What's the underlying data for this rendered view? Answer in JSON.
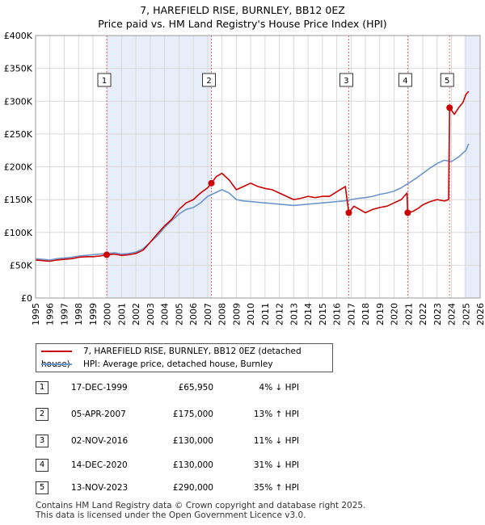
{
  "title": "7, HAREFIELD RISE, BURNLEY, BB12 0EZ",
  "subtitle": "Price paid vs. HM Land Registry's House Price Index (HPI)",
  "colors": {
    "property": "#cc0000",
    "hpi": "#6b96cc",
    "shade": "#e8eef9",
    "grid": "#d9d9d9",
    "vline": "#e06a6a"
  },
  "legend": {
    "property_label": "7, HAREFIELD RISE, BURNLEY, BB12 0EZ (detached house)",
    "hpi_label": "HPI: Average price, detached house, Burnley"
  },
  "sales": [
    {
      "num": "1",
      "date": "17-DEC-1999",
      "price": "£65,950",
      "hpi": "4% ↓ HPI"
    },
    {
      "num": "2",
      "date": "05-APR-2007",
      "price": "£175,000",
      "hpi": "13% ↑ HPI"
    },
    {
      "num": "3",
      "date": "02-NOV-2016",
      "price": "£130,000",
      "hpi": "11% ↓ HPI"
    },
    {
      "num": "4",
      "date": "14-DEC-2020",
      "price": "£130,000",
      "hpi": "31% ↓ HPI"
    },
    {
      "num": "5",
      "date": "13-NOV-2023",
      "price": "£290,000",
      "hpi": "35% ↑ HPI"
    }
  ],
  "footer": {
    "line1": "Contains HM Land Registry data © Crown copyright and database right 2025.",
    "line2": "This data is licensed under the Open Government Licence v3.0."
  },
  "chart_data": {
    "type": "line",
    "xlim": [
      1995,
      2026
    ],
    "ylim": [
      0,
      400000
    ],
    "x_ticks": [
      1995,
      1996,
      1997,
      1998,
      1999,
      2000,
      2001,
      2002,
      2003,
      2004,
      2005,
      2006,
      2007,
      2008,
      2009,
      2010,
      2011,
      2012,
      2013,
      2014,
      2015,
      2016,
      2017,
      2018,
      2019,
      2020,
      2021,
      2022,
      2023,
      2024,
      2025,
      2026
    ],
    "y_ticks": [
      {
        "value": 0,
        "label": "£0"
      },
      {
        "value": 50000,
        "label": "£50K"
      },
      {
        "value": 100000,
        "label": "£100K"
      },
      {
        "value": 150000,
        "label": "£150K"
      },
      {
        "value": 200000,
        "label": "£200K"
      },
      {
        "value": 250000,
        "label": "£250K"
      },
      {
        "value": 300000,
        "label": "£300K"
      },
      {
        "value": 350000,
        "label": "£350K"
      },
      {
        "value": 400000,
        "label": "£400K"
      }
    ],
    "grid": true,
    "shaded_periods": [
      [
        1999.96,
        2007.26
      ],
      [
        2024.9,
        2026
      ]
    ],
    "sale_points": [
      {
        "label": "1",
        "x": 1999.96,
        "y": 65950
      },
      {
        "label": "2",
        "x": 2007.26,
        "y": 175000
      },
      {
        "label": "3",
        "x": 2016.84,
        "y": 130000
      },
      {
        "label": "4",
        "x": 2020.95,
        "y": 130000
      },
      {
        "label": "5",
        "x": 2023.87,
        "y": 290000
      }
    ],
    "series": [
      {
        "name": "7, HAREFIELD RISE, BURNLEY, BB12 0EZ (detached house)",
        "x": [
          1995.0,
          1995.5,
          1996.0,
          1996.5,
          1997.0,
          1997.5,
          1998.0,
          1998.5,
          1999.0,
          1999.5,
          1999.96,
          2000.5,
          2001.0,
          2001.5,
          2002.0,
          2002.5,
          2003.0,
          2003.5,
          2004.0,
          2004.5,
          2005.0,
          2005.5,
          2006.0,
          2006.5,
          2007.0,
          2007.26,
          2007.6,
          2008.0,
          2008.5,
          2009.0,
          2009.5,
          2010.0,
          2010.5,
          2011.0,
          2011.5,
          2012.0,
          2012.5,
          2013.0,
          2013.5,
          2014.0,
          2014.5,
          2015.0,
          2015.5,
          2016.0,
          2016.6,
          2016.84,
          2017.2,
          2017.6,
          2018.0,
          2018.5,
          2019.0,
          2019.5,
          2020.0,
          2020.5,
          2020.9,
          2020.95,
          2021.3,
          2021.7,
          2022.0,
          2022.5,
          2023.0,
          2023.5,
          2023.8,
          2023.87,
          2024.2,
          2024.5,
          2024.8,
          2025.0,
          2025.2
        ],
        "y": [
          58000,
          57000,
          56000,
          58000,
          59000,
          60000,
          62000,
          63000,
          63000,
          64000,
          65950,
          67000,
          65000,
          66000,
          68000,
          73000,
          85000,
          98000,
          110000,
          120000,
          135000,
          145000,
          150000,
          160000,
          168000,
          175000,
          185000,
          190000,
          180000,
          165000,
          170000,
          175000,
          170000,
          167000,
          165000,
          160000,
          155000,
          150000,
          152000,
          155000,
          153000,
          155000,
          155000,
          162000,
          170000,
          130000,
          140000,
          135000,
          130000,
          135000,
          138000,
          140000,
          145000,
          150000,
          160000,
          130000,
          132000,
          137000,
          142000,
          147000,
          150000,
          148000,
          150000,
          290000,
          280000,
          290000,
          298000,
          310000,
          315000
        ]
      },
      {
        "name": "HPI: Average price, detached house, Burnley",
        "x": [
          1995.0,
          1995.5,
          1996.0,
          1996.5,
          1997.0,
          1997.5,
          1998.0,
          1998.5,
          1999.0,
          1999.5,
          2000.0,
          2000.5,
          2001.0,
          2001.5,
          2002.0,
          2002.5,
          2003.0,
          2003.5,
          2004.0,
          2004.5,
          2005.0,
          2005.5,
          2006.0,
          2006.5,
          2007.0,
          2007.5,
          2008.0,
          2008.5,
          2009.0,
          2009.5,
          2010.0,
          2010.5,
          2011.0,
          2011.5,
          2012.0,
          2012.5,
          2013.0,
          2013.5,
          2014.0,
          2014.5,
          2015.0,
          2015.5,
          2016.0,
          2016.5,
          2017.0,
          2017.5,
          2018.0,
          2018.5,
          2019.0,
          2019.5,
          2020.0,
          2020.5,
          2021.0,
          2021.5,
          2022.0,
          2022.5,
          2023.0,
          2023.5,
          2024.0,
          2024.5,
          2025.0,
          2025.2
        ],
        "y": [
          60000,
          59000,
          58000,
          60000,
          61000,
          62000,
          64000,
          65000,
          66000,
          67000,
          68000,
          69000,
          67000,
          68000,
          70000,
          75000,
          85000,
          95000,
          108000,
          118000,
          128000,
          135000,
          138000,
          145000,
          155000,
          160000,
          165000,
          160000,
          150000,
          148000,
          147000,
          146000,
          145000,
          144000,
          143000,
          142000,
          141000,
          142000,
          143000,
          144000,
          145000,
          146000,
          147000,
          148000,
          150000,
          152000,
          153000,
          155000,
          158000,
          160000,
          163000,
          168000,
          175000,
          182000,
          190000,
          198000,
          205000,
          210000,
          208000,
          215000,
          225000,
          235000
        ]
      }
    ]
  }
}
